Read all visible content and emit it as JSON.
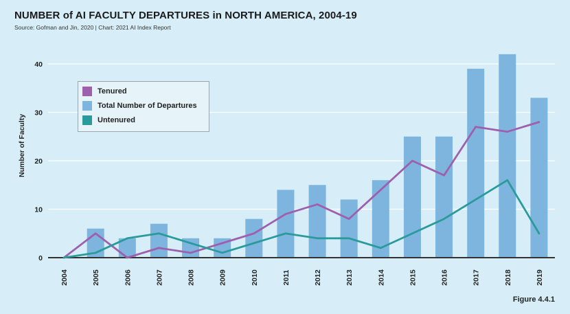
{
  "title": "NUMBER of AI FACULTY DEPARTURES in NORTH AMERICA, 2004-19",
  "source": "Source: Gofman and Jin, 2020 | Chart: 2021 AI Index Report",
  "figure_label": "Figure 4.4.1",
  "colors": {
    "bar": "#7db5de",
    "tenured": "#9e5fae",
    "untenured": "#2a9a9b",
    "grid": "#ffffff",
    "axis": "#333333"
  },
  "chart_data": {
    "type": "bar",
    "title": "NUMBER of AI FACULTY DEPARTURES in NORTH AMERICA, 2004-19",
    "xlabel": "",
    "ylabel": "Number of Faculty",
    "ylim": [
      0,
      40
    ],
    "yticks": [
      0,
      10,
      20,
      30,
      40
    ],
    "grid": true,
    "legend_position": "top-left",
    "categories": [
      "2004",
      "2005",
      "2006",
      "2007",
      "2008",
      "2009",
      "2010",
      "2011",
      "2012",
      "2013",
      "2014",
      "2015",
      "2016",
      "2017",
      "2018",
      "2019"
    ],
    "series": [
      {
        "name": "Total Number of Departures",
        "type": "bar",
        "values": [
          0,
          6,
          4,
          7,
          4,
          4,
          8,
          14,
          15,
          12,
          16,
          25,
          25,
          39,
          42,
          33
        ]
      },
      {
        "name": "Tenured",
        "type": "line",
        "values": [
          0,
          5,
          0,
          2,
          1,
          3,
          5,
          9,
          11,
          8,
          14,
          20,
          17,
          27,
          26,
          28
        ]
      },
      {
        "name": "Untenured",
        "type": "line",
        "values": [
          0,
          1,
          4,
          5,
          3,
          1,
          3,
          5,
          4,
          4,
          2,
          5,
          8,
          12,
          16,
          5
        ]
      }
    ],
    "legend": [
      "Tenured",
      "Total Number of Departures",
      "Untenured"
    ]
  }
}
